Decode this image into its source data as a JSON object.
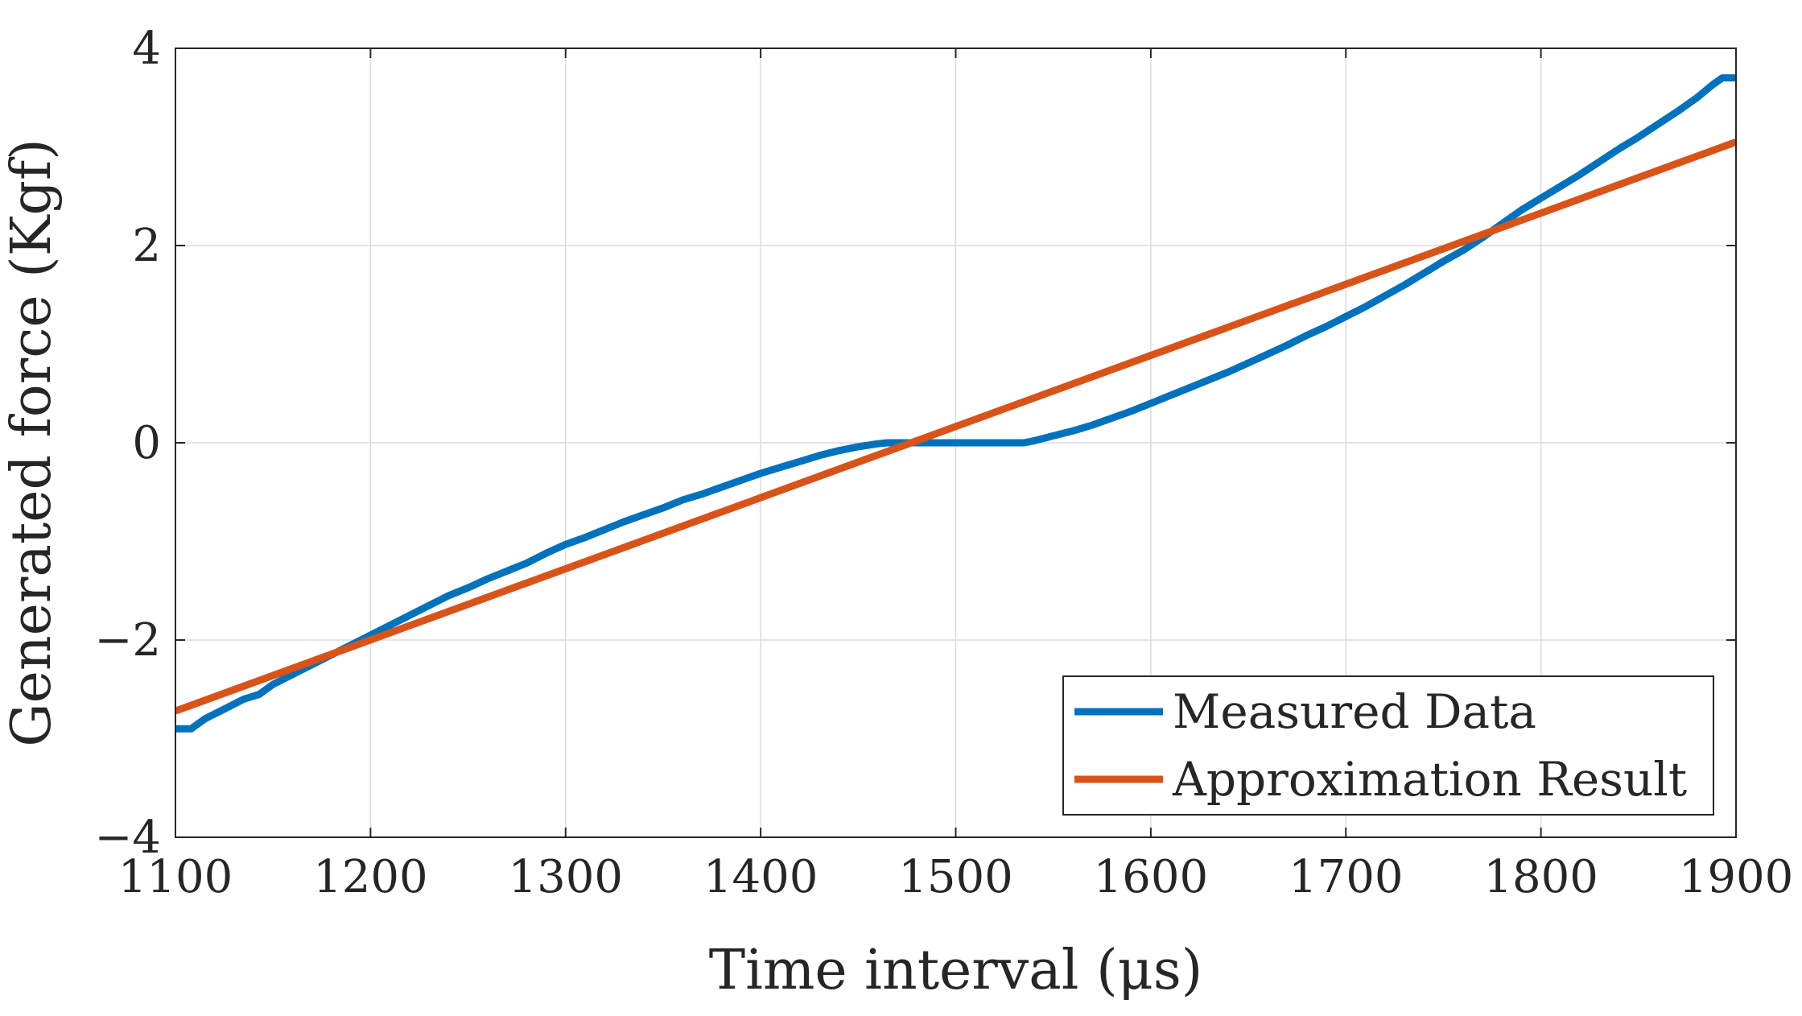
{
  "chart_data": {
    "type": "line",
    "title": "",
    "xlabel": "Time interval (μs)",
    "ylabel": "Generated force (Kgf)",
    "xlim": [
      1100,
      1900
    ],
    "ylim": [
      -4,
      4
    ],
    "xticks": [
      1100,
      1200,
      1300,
      1400,
      1500,
      1600,
      1700,
      1800,
      1900
    ],
    "yticks": [
      -4,
      -2,
      0,
      2,
      4
    ],
    "xtick_labels": [
      "1100",
      "1200",
      "1300",
      "1400",
      "1500",
      "1600",
      "1700",
      "1800",
      "1900"
    ],
    "ytick_labels": [
      "−4",
      "−2",
      "0",
      "2",
      "4"
    ],
    "grid": true,
    "legend_position": "bottom-right",
    "series": [
      {
        "name": "Measured Data",
        "color": "#0072BD",
        "x": [
          1100,
          1108,
          1115,
          1125,
          1135,
          1143,
          1150,
          1160,
          1170,
          1180,
          1190,
          1200,
          1210,
          1220,
          1230,
          1240,
          1250,
          1260,
          1270,
          1280,
          1290,
          1300,
          1310,
          1320,
          1330,
          1340,
          1350,
          1360,
          1370,
          1380,
          1390,
          1400,
          1410,
          1420,
          1430,
          1440,
          1450,
          1460,
          1465,
          1470,
          1480,
          1490,
          1500,
          1510,
          1520,
          1530,
          1535,
          1540,
          1550,
          1560,
          1570,
          1580,
          1590,
          1600,
          1610,
          1620,
          1630,
          1640,
          1650,
          1660,
          1670,
          1680,
          1690,
          1700,
          1710,
          1720,
          1730,
          1740,
          1750,
          1760,
          1770,
          1780,
          1790,
          1800,
          1810,
          1820,
          1830,
          1840,
          1850,
          1860,
          1870,
          1880,
          1888,
          1893,
          1900
        ],
        "values": [
          -2.9,
          -2.9,
          -2.8,
          -2.7,
          -2.6,
          -2.55,
          -2.45,
          -2.35,
          -2.25,
          -2.15,
          -2.05,
          -1.95,
          -1.85,
          -1.75,
          -1.65,
          -1.55,
          -1.47,
          -1.38,
          -1.3,
          -1.22,
          -1.12,
          -1.03,
          -0.96,
          -0.88,
          -0.8,
          -0.73,
          -0.66,
          -0.58,
          -0.52,
          -0.45,
          -0.38,
          -0.31,
          -0.25,
          -0.19,
          -0.13,
          -0.08,
          -0.04,
          -0.01,
          0.0,
          0.0,
          0.0,
          0.0,
          0.0,
          0.0,
          0.0,
          0.0,
          0.0,
          0.02,
          0.07,
          0.12,
          0.18,
          0.25,
          0.32,
          0.4,
          0.48,
          0.56,
          0.64,
          0.72,
          0.81,
          0.9,
          0.99,
          1.09,
          1.18,
          1.28,
          1.38,
          1.49,
          1.6,
          1.72,
          1.84,
          1.95,
          2.08,
          2.22,
          2.36,
          2.48,
          2.6,
          2.72,
          2.85,
          2.98,
          3.1,
          3.23,
          3.36,
          3.5,
          3.63,
          3.7,
          3.7
        ]
      },
      {
        "name": "Approximation Result",
        "color": "#D95319",
        "x": [
          1100,
          1900
        ],
        "values": [
          -2.72,
          3.05
        ]
      }
    ]
  }
}
